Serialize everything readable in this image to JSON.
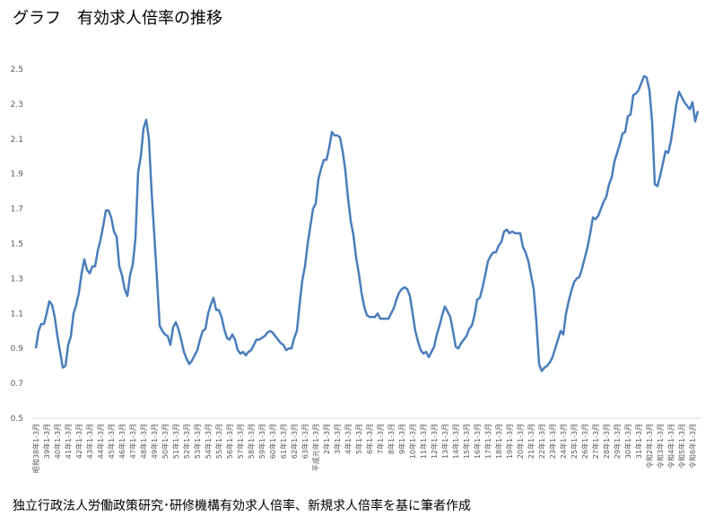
{
  "chart_data": {
    "type": "line",
    "title": "グラフ　有効求人倍率の推移",
    "source": "独立行政法人労働政策研究･研修機構有効求人倍率、新規求人倍率を基に筆者作成",
    "ylim": [
      0.5,
      2.5
    ],
    "yticks": [
      0.5,
      0.7,
      0.9,
      1.1,
      1.3,
      1.5,
      1.7,
      1.9,
      2.1,
      2.3,
      2.5
    ],
    "color": "#4a7ebb",
    "grid": false,
    "categories": [
      "昭和38年1-3月",
      null,
      null,
      null,
      "39年1-3月",
      null,
      null,
      null,
      "40年1-3月",
      null,
      null,
      null,
      "41年1-3月",
      null,
      null,
      null,
      "42年1-3月",
      null,
      null,
      null,
      "43年1-3月",
      null,
      null,
      null,
      "44年1-3月",
      null,
      null,
      null,
      "45年1-3月",
      null,
      null,
      null,
      "46年1-3月",
      null,
      null,
      null,
      "47年1-3月",
      null,
      null,
      null,
      "48年1-3月",
      null,
      null,
      null,
      "49年1-3月",
      null,
      null,
      null,
      "50年1-3月",
      null,
      null,
      null,
      "51年1-3月",
      null,
      null,
      null,
      "52年1-3月",
      null,
      null,
      null,
      "53年1-3月",
      null,
      null,
      null,
      "54年1-3月",
      null,
      null,
      null,
      "55年1-3月",
      null,
      null,
      null,
      "56年1-3月",
      null,
      null,
      null,
      "57年1-3月",
      null,
      null,
      null,
      "58年1-3月",
      null,
      null,
      null,
      "59年1-3月",
      null,
      null,
      null,
      "60年1-3月",
      null,
      null,
      null,
      "61年1-3月",
      null,
      null,
      null,
      "62年1-3月",
      null,
      null,
      null,
      "63年1-3月",
      null,
      null,
      null,
      "平成元年1-3月",
      null,
      null,
      null,
      "2年1-3月",
      null,
      null,
      null,
      "3年1-3月",
      null,
      null,
      null,
      "4年1-3月",
      null,
      null,
      null,
      "5年1-3月",
      null,
      null,
      null,
      "6年1-3月",
      null,
      null,
      null,
      "7年1-3月",
      null,
      null,
      null,
      "8年1-3月",
      null,
      null,
      null,
      "9年1-3月",
      null,
      null,
      null,
      "10年1-3月",
      null,
      null,
      null,
      "11年1-3月",
      null,
      null,
      null,
      "12年1-3月",
      null,
      null,
      null,
      "13年1-3月",
      null,
      null,
      null,
      "14年1-3月",
      null,
      null,
      null,
      "15年1-3月",
      null,
      null,
      null,
      "16年1-3月",
      null,
      null,
      null,
      "17年1-3月",
      null,
      null,
      null,
      "18年1-3月",
      null,
      null,
      null,
      "19年1-3月",
      null,
      null,
      null,
      "20年1-3月",
      null,
      null,
      null,
      "21年1-3月",
      null,
      null,
      null,
      "22年1-3月",
      null,
      null,
      null,
      "23年1-3月",
      null,
      null,
      null,
      "24年1-3月",
      null,
      null,
      null,
      "25年1-3月",
      null,
      null,
      null,
      "26年1-3月",
      null,
      null,
      null,
      "27年1-3月",
      null,
      null,
      null,
      "28年1-3月",
      null,
      null,
      null,
      "29年1-3月",
      null,
      null,
      null,
      "30年1-3月",
      null,
      null,
      null,
      "31年1-3月",
      null,
      null,
      null,
      "令和2年1-3月",
      null,
      null,
      null,
      "令和3年1-3月",
      null,
      null,
      null,
      "令和4年1-3月",
      null,
      null,
      null,
      "令和5年1-3月",
      null,
      null,
      null,
      "令和6年1-3月",
      null,
      null
    ],
    "values": [
      0.9,
      1.0,
      1.04,
      1.04,
      1.1,
      1.17,
      1.15,
      1.08,
      0.97,
      0.88,
      0.79,
      0.8,
      0.92,
      0.97,
      1.1,
      1.15,
      1.22,
      1.33,
      1.41,
      1.35,
      1.33,
      1.37,
      1.37,
      1.46,
      1.52,
      1.6,
      1.69,
      1.69,
      1.65,
      1.57,
      1.54,
      1.37,
      1.32,
      1.24,
      1.2,
      1.32,
      1.38,
      1.53,
      1.91,
      2.0,
      2.16,
      2.21,
      2.1,
      1.8,
      1.55,
      1.3,
      1.03,
      1.0,
      0.98,
      0.97,
      0.92,
      1.02,
      1.05,
      1.01,
      0.95,
      0.88,
      0.84,
      0.81,
      0.83,
      0.86,
      0.89,
      0.95,
      1.0,
      1.01,
      1.1,
      1.15,
      1.19,
      1.12,
      1.12,
      1.08,
      1.01,
      0.96,
      0.95,
      0.98,
      0.95,
      0.89,
      0.87,
      0.88,
      0.86,
      0.88,
      0.89,
      0.92,
      0.95,
      0.95,
      0.96,
      0.97,
      0.99,
      1.0,
      0.99,
      0.97,
      0.95,
      0.93,
      0.92,
      0.89,
      0.9,
      0.9,
      0.96,
      1.0,
      1.15,
      1.29,
      1.37,
      1.5,
      1.6,
      1.7,
      1.73,
      1.87,
      1.93,
      1.98,
      1.98,
      2.05,
      2.14,
      2.12,
      2.12,
      2.11,
      2.03,
      1.92,
      1.76,
      1.63,
      1.55,
      1.42,
      1.33,
      1.22,
      1.14,
      1.09,
      1.08,
      1.08,
      1.08,
      1.1,
      1.07,
      1.07,
      1.07,
      1.07,
      1.1,
      1.13,
      1.18,
      1.22,
      1.24,
      1.25,
      1.24,
      1.2,
      1.1,
      1.0,
      0.94,
      0.89,
      0.87,
      0.88,
      0.85,
      0.88,
      0.91,
      0.98,
      1.03,
      1.09,
      1.14,
      1.11,
      1.08,
      1.0,
      0.91,
      0.9,
      0.93,
      0.95,
      0.97,
      1.01,
      1.03,
      1.09,
      1.18,
      1.19,
      1.25,
      1.32,
      1.4,
      1.43,
      1.45,
      1.45,
      1.49,
      1.51,
      1.57,
      1.58,
      1.56,
      1.57,
      1.56,
      1.56,
      1.56,
      1.48,
      1.45,
      1.4,
      1.32,
      1.24,
      1.05,
      0.81,
      0.77,
      0.79,
      0.8,
      0.82,
      0.85,
      0.9,
      0.95,
      1.0,
      0.98,
      1.1,
      1.17,
      1.23,
      1.28,
      1.3,
      1.31,
      1.36,
      1.42,
      1.48,
      1.56,
      1.65,
      1.64,
      1.66,
      1.7,
      1.74,
      1.77,
      1.84,
      1.88,
      1.97,
      2.02,
      2.07,
      2.13,
      2.14,
      2.23,
      2.24,
      2.35,
      2.36,
      2.38,
      2.42,
      2.46,
      2.45,
      2.38,
      2.2,
      1.84,
      1.83,
      1.89,
      1.96,
      2.03,
      2.02,
      2.09,
      2.19,
      2.3,
      2.37,
      2.34,
      2.31,
      2.29,
      2.27,
      2.31,
      2.2,
      2.26
    ]
  }
}
